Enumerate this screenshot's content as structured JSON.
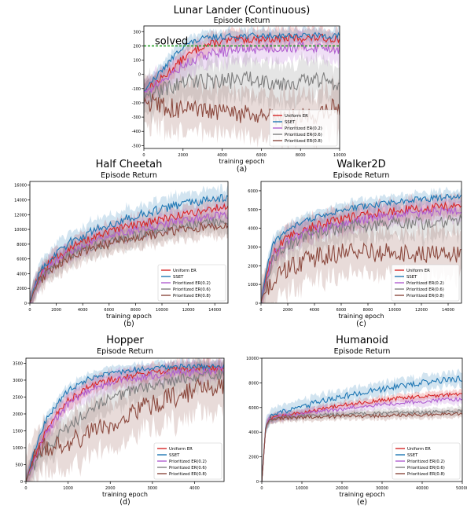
{
  "colors": {
    "Uniform ER": "#d62728",
    "SSET": "#1f77b4",
    "Prioritized ER(0.2)": "#b05fd0",
    "Prioritized ER(0.6)": "#7f7f7f",
    "Prioritized ER(0.8)": "#8c4a3f",
    "solved": "#2ca02c"
  },
  "chart_data": [
    {
      "type": "line",
      "title": "Lunar Lander (Continuous)",
      "subtitle": "Episode Return",
      "xlabel": "training epoch",
      "ylabel": "",
      "caption": "(a)",
      "xlim": [
        0,
        10000
      ],
      "ylim": [
        -520,
        340
      ],
      "xticks": [
        0,
        2000,
        4000,
        6000,
        8000,
        10000
      ],
      "yticks": [
        -500,
        -400,
        -300,
        -200,
        -100,
        0,
        100,
        200,
        300
      ],
      "legend": "bottom-right",
      "hline": {
        "label": "solved",
        "y": 200
      },
      "series": [
        {
          "name": "Uniform ER",
          "x": [
            0,
            1000,
            2000,
            3000,
            4000,
            5000,
            6000,
            7000,
            8000,
            9000,
            10000
          ],
          "values": [
            -120,
            -20,
            110,
            200,
            230,
            245,
            250,
            250,
            255,
            255,
            250
          ],
          "band": 80
        },
        {
          "name": "SSET",
          "x": [
            0,
            1000,
            2000,
            3000,
            4000,
            5000,
            6000,
            7000,
            8000,
            9000,
            10000
          ],
          "values": [
            -120,
            40,
            200,
            250,
            265,
            270,
            270,
            272,
            272,
            272,
            270
          ],
          "band": 60
        },
        {
          "name": "Prioritized ER(0.2)",
          "x": [
            0,
            1000,
            2000,
            3000,
            4000,
            5000,
            6000,
            7000,
            8000,
            9000,
            10000
          ],
          "values": [
            -130,
            -40,
            60,
            130,
            160,
            175,
            185,
            190,
            190,
            190,
            180
          ],
          "band": 110
        },
        {
          "name": "Prioritized ER(0.6)",
          "x": [
            0,
            1000,
            2000,
            3000,
            4000,
            5000,
            6000,
            7000,
            8000,
            9000,
            10000
          ],
          "values": [
            -160,
            -110,
            -60,
            -40,
            -50,
            -30,
            -40,
            -60,
            -50,
            -40,
            -60
          ],
          "band": 170
        },
        {
          "name": "Prioritized ER(0.8)",
          "x": [
            0,
            1000,
            2000,
            3000,
            4000,
            5000,
            6000,
            7000,
            8000,
            9000,
            10000
          ],
          "values": [
            -180,
            -230,
            -250,
            -260,
            -270,
            -280,
            -300,
            -320,
            -300,
            -280,
            -220
          ],
          "band": 200
        }
      ]
    },
    {
      "type": "line",
      "title": "Half Cheetah",
      "subtitle": "Episode Return",
      "xlabel": "training epoch",
      "ylabel": "",
      "caption": "(b)",
      "xlim": [
        0,
        15000
      ],
      "ylim": [
        0,
        16500
      ],
      "xticks": [
        0,
        2000,
        4000,
        6000,
        8000,
        10000,
        12000,
        14000
      ],
      "yticks": [
        0,
        2000,
        4000,
        6000,
        8000,
        10000,
        12000,
        14000,
        16000
      ],
      "legend": "bottom-right",
      "series": [
        {
          "name": "Uniform ER",
          "x": [
            0,
            500,
            1500,
            3000,
            5000,
            7000,
            9000,
            11000,
            13000,
            15000
          ],
          "values": [
            0,
            3000,
            5500,
            7500,
            9000,
            10200,
            11000,
            11800,
            12500,
            13200
          ],
          "band": 1500
        },
        {
          "name": "SSET",
          "x": [
            0,
            500,
            1500,
            3000,
            5000,
            7000,
            9000,
            11000,
            13000,
            15000
          ],
          "values": [
            0,
            3300,
            6000,
            8200,
            10000,
            11300,
            12300,
            13200,
            13800,
            14300
          ],
          "band": 1700
        },
        {
          "name": "Prioritized ER(0.2)",
          "x": [
            0,
            500,
            1500,
            3000,
            5000,
            7000,
            9000,
            11000,
            13000,
            15000
          ],
          "values": [
            0,
            2800,
            5000,
            7000,
            8500,
            9500,
            10300,
            11000,
            11500,
            12000
          ],
          "band": 1600
        },
        {
          "name": "Prioritized ER(0.6)",
          "x": [
            0,
            500,
            1500,
            3000,
            5000,
            7000,
            9000,
            11000,
            13000,
            15000
          ],
          "values": [
            0,
            2600,
            4700,
            6500,
            7800,
            8800,
            9500,
            10200,
            10800,
            11200
          ],
          "band": 1800
        },
        {
          "name": "Prioritized ER(0.8)",
          "x": [
            0,
            500,
            1500,
            3000,
            5000,
            7000,
            9000,
            11000,
            13000,
            15000
          ],
          "values": [
            0,
            2500,
            4500,
            6300,
            7600,
            8500,
            9200,
            9800,
            10300,
            10700
          ],
          "band": 1800
        }
      ]
    },
    {
      "type": "line",
      "title": "Walker2D",
      "subtitle": "Episode Return",
      "xlabel": "training epoch",
      "ylabel": "",
      "caption": "(c)",
      "xlim": [
        0,
        15000
      ],
      "ylim": [
        0,
        6500
      ],
      "xticks": [
        0,
        2000,
        4000,
        6000,
        8000,
        10000,
        12000,
        14000
      ],
      "yticks": [
        0,
        1000,
        2000,
        3000,
        4000,
        5000,
        6000
      ],
      "legend": "bottom-right",
      "series": [
        {
          "name": "Uniform ER",
          "x": [
            0,
            500,
            1000,
            2000,
            3000,
            5000,
            7000,
            9000,
            11000,
            13000,
            15000
          ],
          "values": [
            0,
            1800,
            2800,
            3500,
            3900,
            4300,
            4600,
            4800,
            5000,
            5100,
            5200
          ],
          "band": 700
        },
        {
          "name": "SSET",
          "x": [
            0,
            500,
            1000,
            2000,
            3000,
            5000,
            7000,
            9000,
            11000,
            13000,
            15000
          ],
          "values": [
            0,
            2200,
            3300,
            3900,
            4300,
            4800,
            5100,
            5300,
            5500,
            5600,
            5700
          ],
          "band": 450
        },
        {
          "name": "Prioritized ER(0.2)",
          "x": [
            0,
            500,
            1000,
            2000,
            3000,
            5000,
            7000,
            9000,
            11000,
            13000,
            15000
          ],
          "values": [
            0,
            1600,
            2600,
            3300,
            3700,
            4100,
            4400,
            4600,
            4800,
            4900,
            5000
          ],
          "band": 700
        },
        {
          "name": "Prioritized ER(0.6)",
          "x": [
            0,
            500,
            1000,
            2000,
            3000,
            5000,
            7000,
            9000,
            11000,
            13000,
            15000
          ],
          "values": [
            0,
            1500,
            2500,
            3100,
            3500,
            3900,
            4100,
            4200,
            4300,
            4250,
            4400
          ],
          "band": 1000
        },
        {
          "name": "Prioritized ER(0.8)",
          "x": [
            0,
            500,
            1000,
            2000,
            3000,
            5000,
            7000,
            9000,
            11000,
            13000,
            15000
          ],
          "values": [
            0,
            900,
            1400,
            1800,
            2200,
            2600,
            2800,
            2700,
            2600,
            2600,
            2700
          ],
          "band": 1500
        }
      ]
    },
    {
      "type": "line",
      "title": "Hopper",
      "subtitle": "Episode Return",
      "xlabel": "training epoch",
      "ylabel": "",
      "caption": "(d)",
      "xlim": [
        0,
        4700
      ],
      "ylim": [
        0,
        3650
      ],
      "xticks": [
        0,
        1000,
        2000,
        3000,
        4000
      ],
      "yticks": [
        0,
        500,
        1000,
        1500,
        2000,
        2500,
        3000,
        3500
      ],
      "legend": "bottom-right",
      "series": [
        {
          "name": "Uniform ER",
          "x": [
            0,
            200,
            500,
            1000,
            1500,
            2000,
            2500,
            3000,
            3500,
            4000,
            4700
          ],
          "values": [
            0,
            700,
            1600,
            2400,
            2800,
            3000,
            3150,
            3250,
            3300,
            3350,
            3350
          ],
          "band": 300
        },
        {
          "name": "SSET",
          "x": [
            0,
            200,
            500,
            1000,
            1500,
            2000,
            2500,
            3000,
            3500,
            4000,
            4700
          ],
          "values": [
            0,
            900,
            1900,
            2700,
            3050,
            3200,
            3300,
            3350,
            3400,
            3400,
            3400
          ],
          "band": 220
        },
        {
          "name": "Prioritized ER(0.2)",
          "x": [
            0,
            200,
            500,
            1000,
            1500,
            2000,
            2500,
            3000,
            3500,
            4000,
            4700
          ],
          "values": [
            0,
            650,
            1500,
            2300,
            2700,
            2950,
            3050,
            3150,
            3200,
            3250,
            3300
          ],
          "band": 350
        },
        {
          "name": "Prioritized ER(0.6)",
          "x": [
            0,
            200,
            500,
            1000,
            1500,
            2000,
            2500,
            3000,
            3500,
            4000,
            4700
          ],
          "values": [
            0,
            500,
            1000,
            1600,
            2100,
            2450,
            2700,
            2850,
            2950,
            3100,
            3200
          ],
          "band": 500
        },
        {
          "name": "Prioritized ER(0.8)",
          "x": [
            0,
            200,
            500,
            1000,
            1500,
            2000,
            2500,
            3000,
            3500,
            4000,
            4700
          ],
          "values": [
            0,
            900,
            1000,
            1150,
            1400,
            1700,
            2000,
            2300,
            2500,
            2700,
            2800
          ],
          "band": 900
        }
      ]
    },
    {
      "type": "line",
      "title": "Humanoid",
      "subtitle": "Episode Return",
      "xlabel": "training epoch",
      "ylabel": "",
      "caption": "(e)",
      "xlim": [
        0,
        50000
      ],
      "ylim": [
        0,
        10000
      ],
      "xticks": [
        0,
        10000,
        20000,
        30000,
        40000,
        50000
      ],
      "yticks": [
        0,
        2000,
        4000,
        6000,
        8000,
        10000
      ],
      "legend": "bottom-right",
      "series": [
        {
          "name": "Uniform ER",
          "x": [
            0,
            1000,
            2000,
            5000,
            10000,
            15000,
            20000,
            25000,
            30000,
            35000,
            40000,
            45000,
            50000
          ],
          "values": [
            0,
            4500,
            5100,
            5300,
            5600,
            5900,
            6200,
            6400,
            6600,
            6800,
            6900,
            7000,
            7100
          ],
          "band": 400
        },
        {
          "name": "SSET",
          "x": [
            0,
            1000,
            2000,
            5000,
            10000,
            15000,
            20000,
            25000,
            30000,
            35000,
            40000,
            45000,
            50000
          ],
          "values": [
            0,
            4600,
            5200,
            5600,
            6100,
            6500,
            6900,
            7200,
            7500,
            7800,
            8000,
            8200,
            8350
          ],
          "band": 700
        },
        {
          "name": "Prioritized ER(0.2)",
          "x": [
            0,
            1000,
            2000,
            5000,
            10000,
            15000,
            20000,
            25000,
            30000,
            35000,
            40000,
            45000,
            50000
          ],
          "values": [
            0,
            4500,
            5100,
            5300,
            5500,
            5700,
            5900,
            6100,
            6250,
            6400,
            6500,
            6600,
            6700
          ],
          "band": 450
        },
        {
          "name": "Prioritized ER(0.6)",
          "x": [
            0,
            1000,
            2000,
            5000,
            10000,
            15000,
            20000,
            25000,
            30000,
            35000,
            40000,
            45000,
            50000
          ],
          "values": [
            0,
            4500,
            5000,
            5200,
            5300,
            5400,
            5450,
            5500,
            5550,
            5600,
            5600,
            5650,
            5700
          ],
          "band": 400
        },
        {
          "name": "Prioritized ER(0.8)",
          "x": [
            0,
            1000,
            2000,
            5000,
            10000,
            15000,
            20000,
            25000,
            30000,
            35000,
            40000,
            45000,
            50000
          ],
          "values": [
            0,
            4500,
            5000,
            5150,
            5200,
            5250,
            5300,
            5300,
            5350,
            5400,
            5400,
            5450,
            5500
          ],
          "band": 400
        }
      ]
    }
  ]
}
